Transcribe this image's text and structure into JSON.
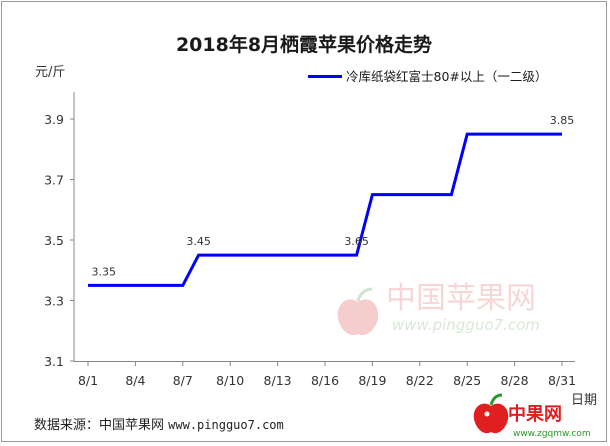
{
  "chart_data": {
    "type": "line",
    "title": "2018年8月栖霞苹果价格走势",
    "ylabel": "元/斤",
    "xlabel": "日期",
    "x": [
      "8/1",
      "8/2",
      "8/3",
      "8/4",
      "8/5",
      "8/6",
      "8/7",
      "8/8",
      "8/9",
      "8/10",
      "8/11",
      "8/12",
      "8/13",
      "8/14",
      "8/15",
      "8/16",
      "8/17",
      "8/18",
      "8/19",
      "8/20",
      "8/21",
      "8/22",
      "8/23",
      "8/24",
      "8/25",
      "8/26",
      "8/27",
      "8/28",
      "8/29",
      "8/30",
      "8/31"
    ],
    "x_tick_labels": [
      "8/1",
      "8/4",
      "8/7",
      "8/10",
      "8/13",
      "8/16",
      "8/19",
      "8/22",
      "8/25",
      "8/28",
      "8/31"
    ],
    "y_tick_labels": [
      "3.1",
      "3.3",
      "3.5",
      "3.7",
      "3.9"
    ],
    "ylim": [
      3.1,
      3.9
    ],
    "grid": false,
    "legend_position": "top-right",
    "series": [
      {
        "name": "冷库纸袋红富士80#以上（一二级）",
        "color": "#0000ff",
        "values": [
          3.35,
          3.35,
          3.35,
          3.35,
          3.35,
          3.35,
          3.35,
          3.45,
          3.45,
          3.45,
          3.45,
          3.45,
          3.45,
          3.45,
          3.45,
          3.45,
          3.45,
          3.45,
          3.65,
          3.65,
          3.65,
          3.65,
          3.65,
          3.65,
          3.85,
          3.85,
          3.85,
          3.85,
          3.85,
          3.85,
          3.85
        ]
      }
    ],
    "annotations": [
      {
        "x": "8/2",
        "text": "3.35"
      },
      {
        "x": "8/8",
        "text": "3.45"
      },
      {
        "x": "8/18",
        "text": "3.65"
      },
      {
        "x": "8/31",
        "text": "3.85"
      }
    ]
  },
  "source_label": "数据来源：中国苹果网",
  "source_url": "www.pingguo7.com",
  "watermark": {
    "name": "中国苹果网",
    "url": "www.pingguo7.com"
  },
  "logo": {
    "name": "中果网",
    "url": "www.zgqmw.com"
  }
}
